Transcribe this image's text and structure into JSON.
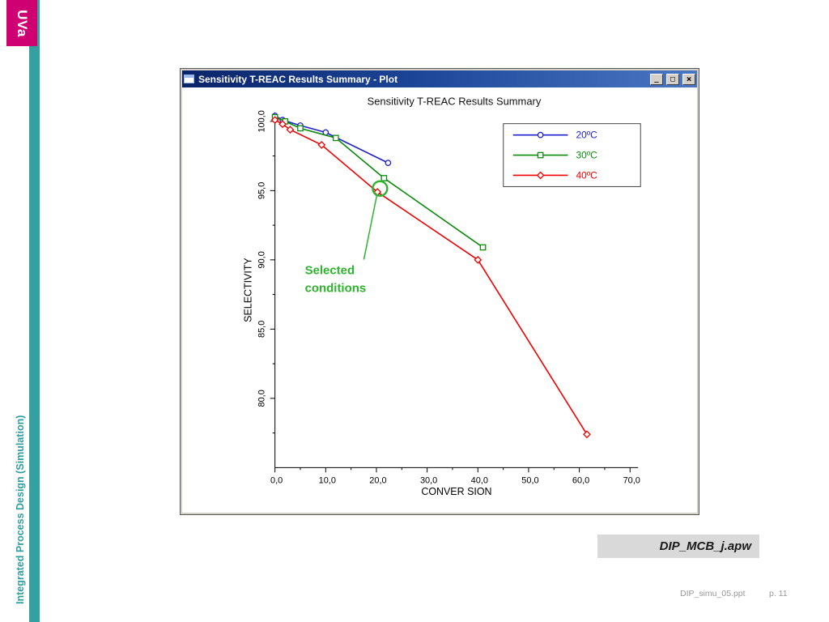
{
  "slide": {
    "logo_text": "UVa",
    "sidebar_text": "Integrated Process Design (Simulation)",
    "filename": "DIP_MCB_j.apw",
    "footer_file": "DIP_simu_05.ppt",
    "footer_page": "p. 11",
    "accent_magenta": "#cf0072",
    "accent_teal": "#35a0a0"
  },
  "window": {
    "title": "Sensitivity T-REAC Results Summary - Plot",
    "controls": [
      {
        "name": "minimize",
        "glyph": "_"
      },
      {
        "name": "maximize",
        "glyph": "□"
      },
      {
        "name": "close",
        "glyph": "×"
      }
    ]
  },
  "chart_data": {
    "type": "line",
    "title": "Sensitivity T-REAC Results Summary",
    "xlabel": "CONVER SION",
    "ylabel": "SELECTIVITY",
    "xlim": [
      0,
      70
    ],
    "ylim": [
      75,
      100.65
    ],
    "grid": false,
    "legend_position": "top-right",
    "x_ticks": [
      {
        "v": 0,
        "label": "0,0"
      },
      {
        "v": 10,
        "label": "10,0"
      },
      {
        "v": 20,
        "label": "20,0"
      },
      {
        "v": 30,
        "label": "30,0"
      },
      {
        "v": 40,
        "label": "40,0"
      },
      {
        "v": 50,
        "label": "50,0"
      },
      {
        "v": 60,
        "label": "60,0"
      },
      {
        "v": 70,
        "label": "70,0"
      }
    ],
    "y_ticks": [
      {
        "v": 80,
        "label": "80,0"
      },
      {
        "v": 85,
        "label": "85,0"
      },
      {
        "v": 90,
        "label": "90,0"
      },
      {
        "v": 95,
        "label": "95,0"
      },
      {
        "v": 100,
        "label": "100,0"
      }
    ],
    "series": [
      {
        "name": "20ºC",
        "color": "#2020cc",
        "marker": "circle",
        "x": [
          0,
          1.5,
          5,
          10,
          22.3
        ],
        "y": [
          100.4,
          100.1,
          99.7,
          99.2,
          97.0
        ]
      },
      {
        "name": "30ºC",
        "color": "#0c8a0c",
        "marker": "square",
        "x": [
          0,
          2,
          5,
          12,
          21.5,
          41
        ],
        "y": [
          100.3,
          100.0,
          99.5,
          98.8,
          95.9,
          90.9
        ]
      },
      {
        "name": "40ºC",
        "color": "#f00000",
        "marker": "diamond",
        "x": [
          0,
          1.5,
          3,
          9.2,
          20.2,
          40,
          61.5
        ],
        "y": [
          100.1,
          99.8,
          99.4,
          98.3,
          94.9,
          90.0,
          77.4
        ]
      }
    ],
    "annotation": {
      "text_lines": [
        "Selected",
        "conditions"
      ],
      "color": "#2db32d",
      "x": 20.7,
      "y": 95.15
    }
  }
}
